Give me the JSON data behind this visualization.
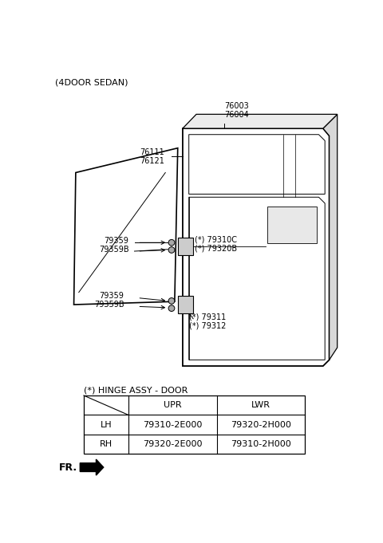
{
  "title": "(4DOOR SEDAN)",
  "bg_color": "#ffffff",
  "text_color": "#000000",
  "line_color": "#000000",
  "table_title": "(*) HINGE ASSY - DOOR",
  "table_col_labels": [
    "UPR",
    "LWR"
  ],
  "table_row_labels": [
    "LH",
    "RH"
  ],
  "table_data": [
    [
      "79310-2E000",
      "79320-2H000"
    ],
    [
      "79320-2E000",
      "79310-2H000"
    ]
  ],
  "fr_label": "FR.",
  "label_76003": "76003\n76004",
  "label_76111": "76111\n76121",
  "label_79310C": "(*) 79310C\n(*) 79320B",
  "label_79311": "(*) 79311\n(*) 79312",
  "label_79359_u": "79359",
  "label_79359B_u": "79359B",
  "label_79359_l": "79359",
  "label_79359B_l": "79359B"
}
